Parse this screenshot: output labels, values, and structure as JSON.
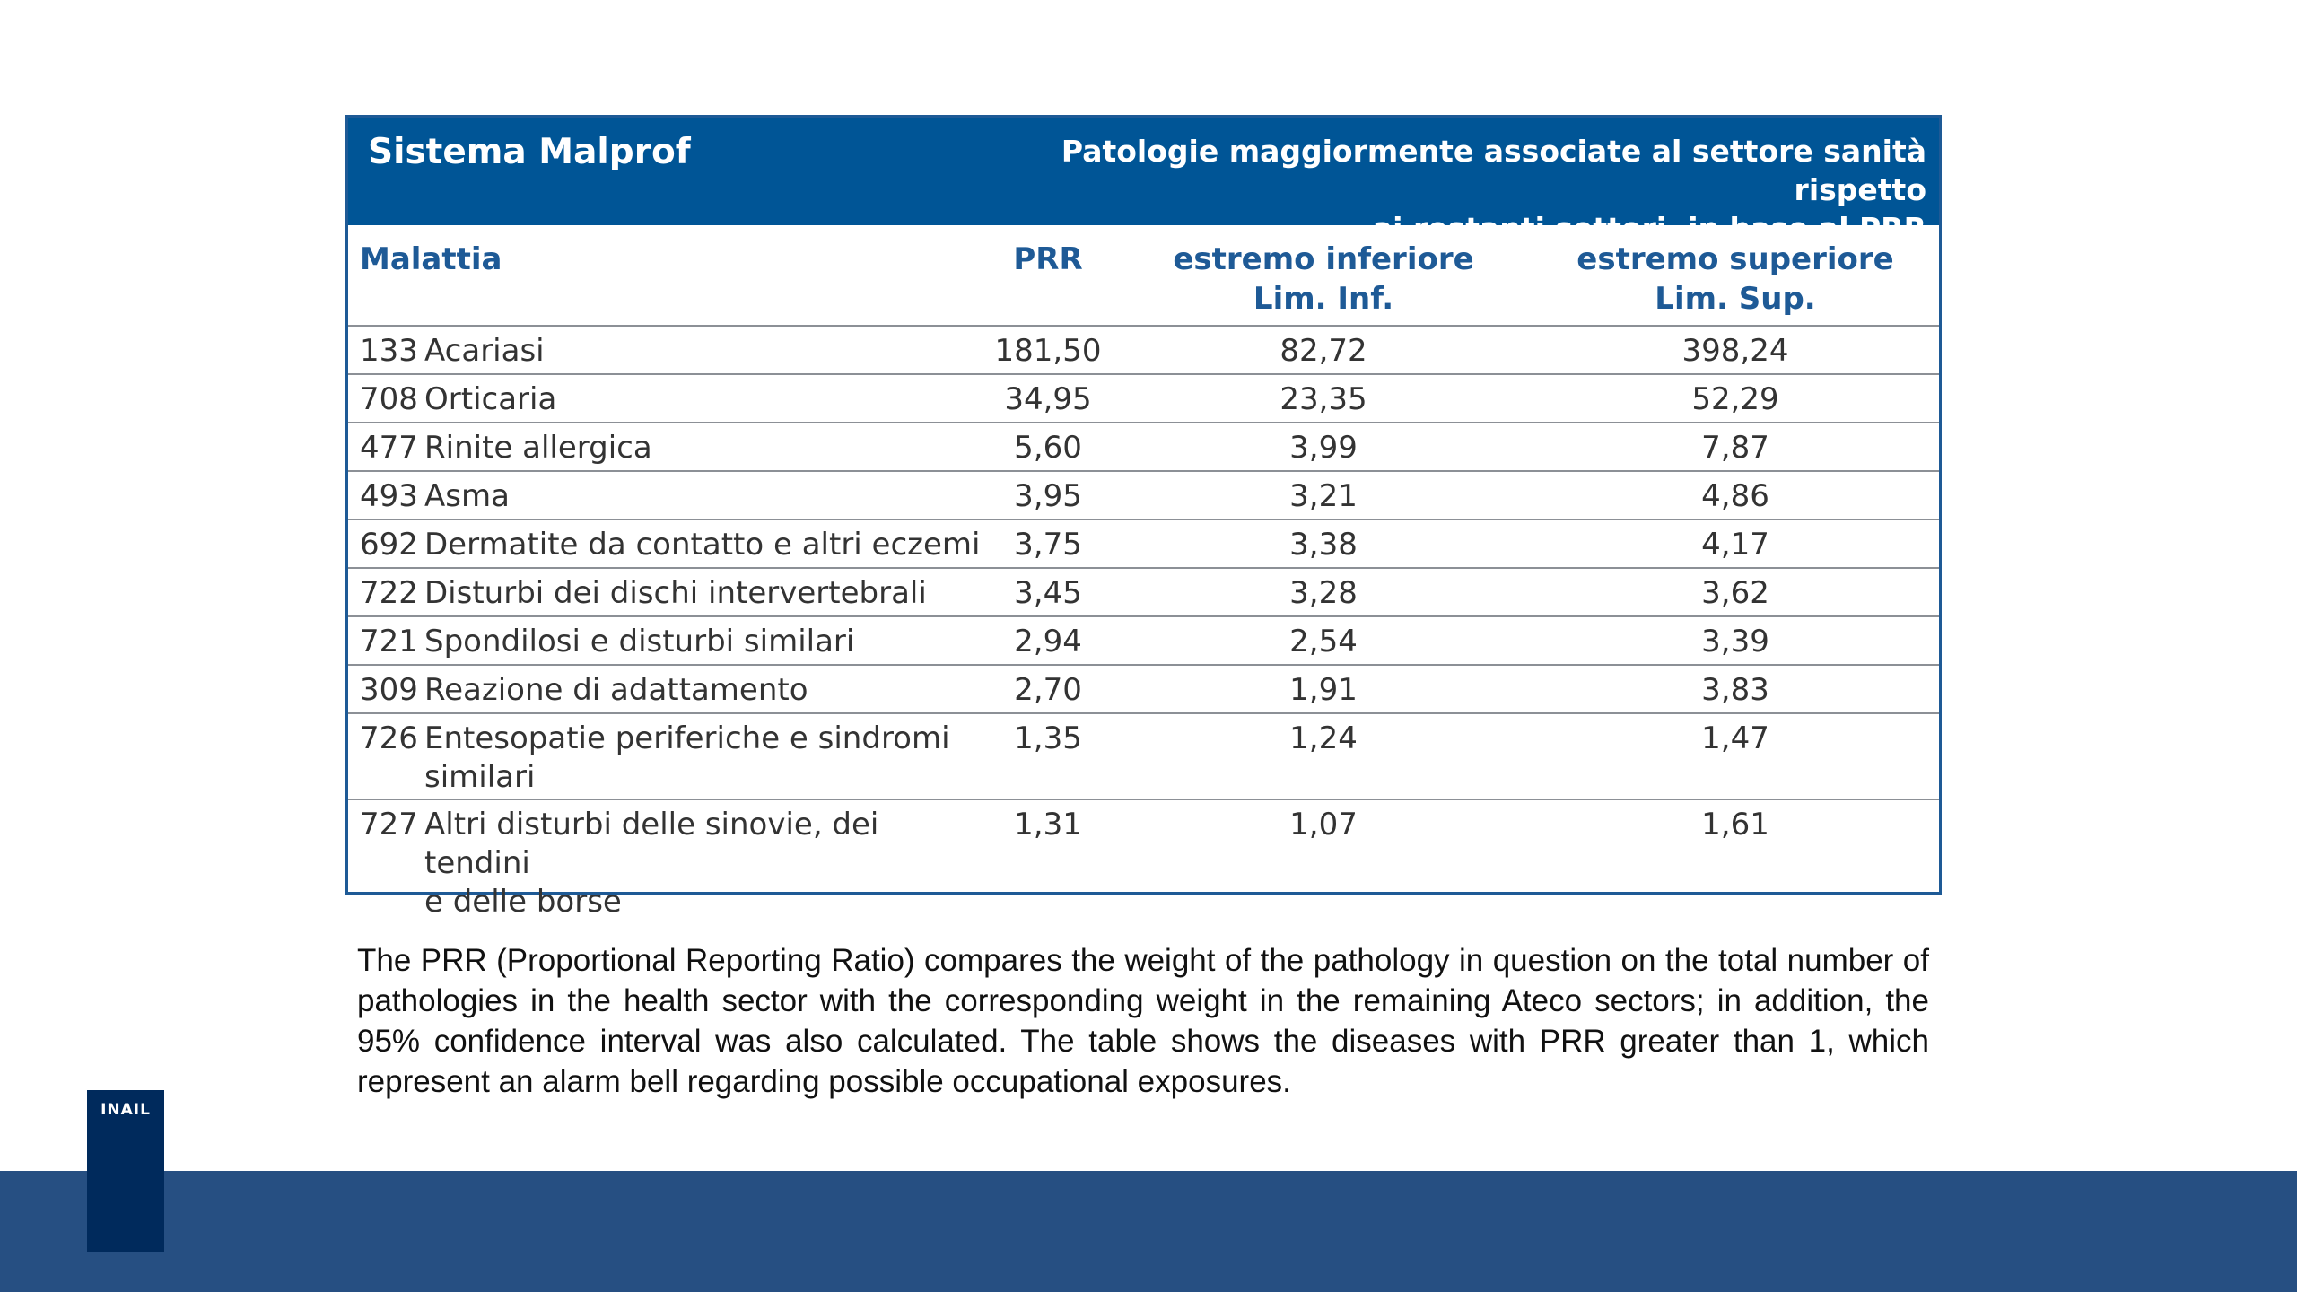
{
  "table": {
    "title": "Sistema Malprof",
    "subtitle_line1": "Patologie maggiormente associate al settore sanità rispetto",
    "subtitle_line2": "ai restanti settori, in base al PRR",
    "columns": {
      "disease": "Malattia",
      "prr": "PRR",
      "lower_line1": "estremo inferiore",
      "lower_line2": "Lim. Inf.",
      "upper_line1": "estremo superiore",
      "upper_line2": "Lim. Sup."
    },
    "rows": [
      {
        "code": "133",
        "name": "Acariasi",
        "name_line2": "",
        "prr": "181,50",
        "lower": "82,72",
        "upper": "398,24"
      },
      {
        "code": "708",
        "name": "Orticaria",
        "name_line2": "",
        "prr": "34,95",
        "lower": "23,35",
        "upper": "52,29"
      },
      {
        "code": "477",
        "name": "Rinite allergica",
        "name_line2": "",
        "prr": "5,60",
        "lower": "3,99",
        "upper": "7,87"
      },
      {
        "code": "493",
        "name": "Asma",
        "name_line2": "",
        "prr": "3,95",
        "lower": "3,21",
        "upper": "4,86"
      },
      {
        "code": "692",
        "name": "Dermatite da contatto e altri eczemi",
        "name_line2": "",
        "prr": "3,75",
        "lower": "3,38",
        "upper": "4,17"
      },
      {
        "code": "722",
        "name": "Disturbi dei dischi intervertebrali",
        "name_line2": "",
        "prr": "3,45",
        "lower": "3,28",
        "upper": "3,62"
      },
      {
        "code": "721",
        "name": "Spondilosi e disturbi similari",
        "name_line2": "",
        "prr": "2,94",
        "lower": "2,54",
        "upper": "3,39"
      },
      {
        "code": "309",
        "name": "Reazione di adattamento",
        "name_line2": "",
        "prr": "2,70",
        "lower": "1,91",
        "upper": "3,83"
      },
      {
        "code": "726",
        "name": "Entesopatie periferiche e sindromi",
        "name_line2": "similari",
        "prr": "1,35",
        "lower": "1,24",
        "upper": "1,47"
      },
      {
        "code": "727",
        "name": "Altri disturbi delle sinovie, dei tendini",
        "name_line2": "e delle borse",
        "prr": "1,31",
        "lower": "1,07",
        "upper": "1,61"
      }
    ]
  },
  "description": "The PRR (Proportional Reporting Ratio) compares the weight of the pathology in question on the total number of pathologies in the health sector with the corresponding weight in the remaining Ateco sectors; in addition, the 95% confidence interval was also calculated. The table shows the diseases with PRR greater than 1, which represent an alarm bell regarding possible occupational exposures.",
  "logo": {
    "text": "INAIL"
  },
  "colors": {
    "header_bg": "#005596",
    "accent_text": "#1e5a96",
    "footer_bar": "#264f82",
    "logo_bg": "#002a5c"
  }
}
